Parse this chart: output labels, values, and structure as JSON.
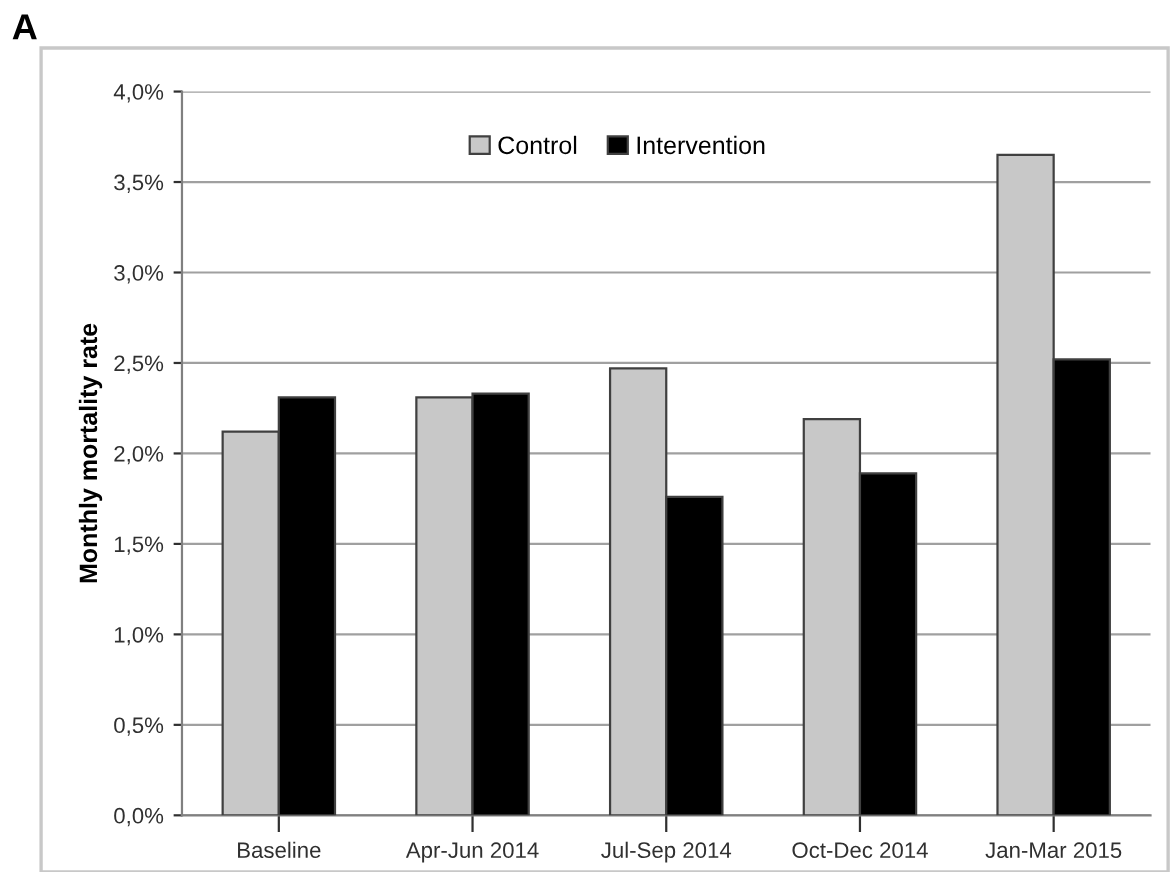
{
  "chart_data": {
    "type": "bar",
    "title": "A",
    "ylabel": "Monthly mortality rate",
    "categories": [
      "Baseline",
      "Apr-Jun 2014",
      "Jul-Sep 2014",
      "Oct-Dec 2014",
      "Jan-Mar 2015"
    ],
    "series": [
      {
        "name": "Control",
        "color": "#c8c8c8",
        "values": [
          2.12,
          2.31,
          2.47,
          2.19,
          3.65
        ]
      },
      {
        "name": "Intervention",
        "color": "#000000",
        "values": [
          2.31,
          2.33,
          1.76,
          1.89,
          2.52
        ]
      }
    ],
    "ylim": [
      0,
      4
    ],
    "yticks": [
      {
        "value": 0,
        "label": "0,0%"
      },
      {
        "value": 0.5,
        "label": "0,5%"
      },
      {
        "value": 1,
        "label": "1,0%"
      },
      {
        "value": 1.5,
        "label": "1,5%"
      },
      {
        "value": 2,
        "label": "2,0%"
      },
      {
        "value": 2.5,
        "label": "2,5%"
      },
      {
        "value": 3,
        "label": "3,0%"
      },
      {
        "value": 3.5,
        "label": "3,5%"
      },
      {
        "value": 4,
        "label": "4,0%"
      }
    ],
    "grid": "y",
    "legend": "top"
  }
}
